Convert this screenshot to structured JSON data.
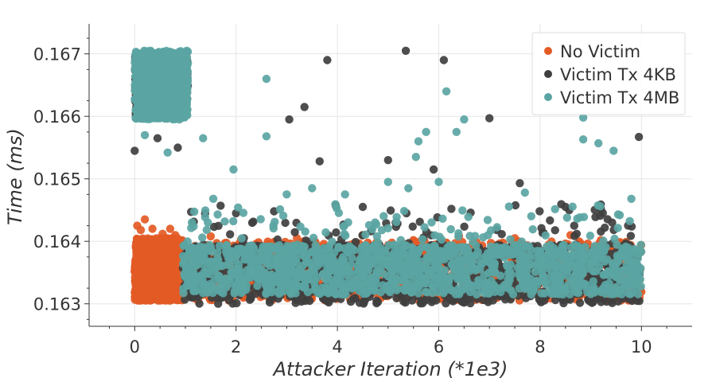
{
  "chart_data": {
    "type": "scatter",
    "xlabel": "Attacker Iteration (*1e3)",
    "ylabel": "Time (ms)",
    "xlim": [
      -0.9,
      11.0
    ],
    "ylim": [
      0.16264,
      0.16748
    ],
    "x_ticks": [
      0,
      2,
      4,
      6,
      8,
      10
    ],
    "x_tick_labels": [
      "0",
      "2",
      "4",
      "6",
      "8",
      "10"
    ],
    "y_ticks": [
      0.163,
      0.164,
      0.165,
      0.166,
      0.167
    ],
    "y_tick_labels": [
      "0.163",
      "0.164",
      "0.165",
      "0.166",
      "0.167"
    ],
    "grid": true,
    "legend_position": "top-right",
    "series": [
      {
        "name": "No Victim",
        "color": "#e35a25",
        "clusters": [
          {
            "x_range": [
              0.0,
              0.95
            ],
            "y_range": [
              0.16305,
              0.16405
            ],
            "count": 1100
          },
          {
            "x_range": [
              0.95,
              10.0
            ],
            "y_range": [
              0.16305,
              0.164
            ],
            "count": 1100
          }
        ],
        "points": [
          [
            0.05,
            0.16425
          ],
          [
            0.12,
            0.16418
          ],
          [
            0.2,
            0.16435
          ],
          [
            0.35,
            0.1642
          ],
          [
            0.55,
            0.16412
          ],
          [
            0.7,
            0.1642
          ],
          [
            0.8,
            0.1641
          ],
          [
            1.5,
            0.16408
          ],
          [
            2.1,
            0.16403
          ],
          [
            3.2,
            0.16405
          ],
          [
            4.5,
            0.1641
          ],
          [
            5.5,
            0.16402
          ],
          [
            6.4,
            0.16408
          ],
          [
            7.5,
            0.16405
          ],
          [
            8.6,
            0.1641
          ],
          [
            9.2,
            0.16402
          ]
        ]
      },
      {
        "name": "Victim Tx 4KB",
        "color": "#3f3f3f",
        "clusters": [
          {
            "x_range": [
              0.0,
              1.05
            ],
            "y_range": [
              0.166,
              0.167
            ],
            "count": 400
          },
          {
            "x_range": [
              0.95,
              10.0
            ],
            "y_range": [
              0.163,
              0.16395
            ],
            "count": 900
          },
          {
            "x_range": [
              0.95,
              10.0
            ],
            "y_range": [
              0.16395,
              0.1646
            ],
            "count": 70
          }
        ],
        "points": [
          [
            0.0,
            0.16545
          ],
          [
            0.45,
            0.16565
          ],
          [
            0.85,
            0.1655
          ],
          [
            2.0,
            0.16445
          ],
          [
            2.75,
            0.16448
          ],
          [
            3.05,
            0.16595
          ],
          [
            3.35,
            0.16615
          ],
          [
            3.65,
            0.16528
          ],
          [
            3.8,
            0.1669
          ],
          [
            5.0,
            0.1653
          ],
          [
            5.35,
            0.16705
          ],
          [
            5.9,
            0.16515
          ],
          [
            6.1,
            0.1669
          ],
          [
            6.25,
            0.16452
          ],
          [
            7.0,
            0.16597
          ],
          [
            7.6,
            0.16493
          ],
          [
            9.2,
            0.16452
          ],
          [
            9.95,
            0.16567
          ],
          [
            4.5,
            0.16455
          ],
          [
            8.5,
            0.16455
          ]
        ]
      },
      {
        "name": "Victim Tx 4MB",
        "color": "#5aa5a3",
        "clusters": [
          {
            "x_range": [
              0.0,
              1.05
            ],
            "y_range": [
              0.16595,
              0.16705
            ],
            "count": 650
          },
          {
            "x_range": [
              0.95,
              10.0
            ],
            "y_range": [
              0.16315,
              0.16395
            ],
            "count": 1300
          },
          {
            "x_range": [
              0.95,
              10.0
            ],
            "y_range": [
              0.16395,
              0.1646
            ],
            "count": 90
          }
        ],
        "points": [
          [
            0.2,
            0.1657
          ],
          [
            0.65,
            0.16542
          ],
          [
            1.35,
            0.16565
          ],
          [
            1.55,
            0.16468
          ],
          [
            1.95,
            0.16515
          ],
          [
            2.6,
            0.1666
          ],
          [
            2.6,
            0.16568
          ],
          [
            3.5,
            0.16485
          ],
          [
            4.15,
            0.16475
          ],
          [
            5.55,
            0.16535
          ],
          [
            5.6,
            0.1656
          ],
          [
            5.75,
            0.16575
          ],
          [
            6.15,
            0.1664
          ],
          [
            6.35,
            0.16575
          ],
          [
            6.5,
            0.16595
          ],
          [
            7.7,
            0.16478
          ],
          [
            8.85,
            0.16598
          ],
          [
            8.85,
            0.16563
          ],
          [
            9.15,
            0.16557
          ],
          [
            9.45,
            0.16545
          ],
          [
            9.8,
            0.16468
          ],
          [
            5.0,
            0.16495
          ],
          [
            5.4,
            0.16485
          ],
          [
            6.0,
            0.16495
          ],
          [
            3.0,
            0.16475
          ]
        ]
      }
    ]
  }
}
